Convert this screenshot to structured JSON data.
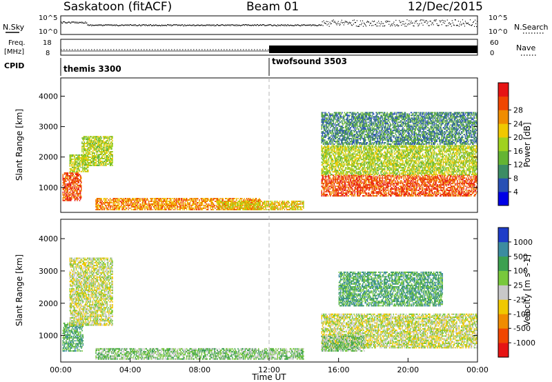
{
  "header": {
    "station": "Saskatoon (fitACF)",
    "beam": "Beam 01",
    "date": "12/Dec/2015"
  },
  "status_panels": {
    "nsky": {
      "left_label": "N.Sky",
      "right_label": "N.Search",
      "ticks_left": [
        "10^5",
        "10^0"
      ],
      "ticks_right": [
        "10^5",
        "10^0"
      ]
    },
    "freq": {
      "left_label_line1": "Freq.",
      "left_label_line2": "[MHz]",
      "right_label": "Nave",
      "ticks_left": [
        "18",
        "8"
      ],
      "ticks_right": [
        "60",
        "0"
      ]
    },
    "cpid": {
      "label": "CPID",
      "modes": [
        {
          "name": "themis 3300",
          "start_hour": 0
        },
        {
          "name": "twofsound 3503",
          "start_hour": 12
        }
      ]
    }
  },
  "chart_data": [
    {
      "type": "heatmap",
      "panel": "power",
      "ylabel": "Slant Range [km]",
      "ylim": [
        180,
        4600
      ],
      "yticks": [
        1000,
        2000,
        3000,
        4000
      ],
      "xlim_hours": [
        0,
        24
      ],
      "colorbar": {
        "label": "Power [dB]",
        "ticks": [
          "4",
          "8",
          "12",
          "16",
          "20",
          "24",
          "28"
        ],
        "colors": [
          "#0000e6",
          "#2850b4",
          "#3c8c64",
          "#64b432",
          "#a0d21e",
          "#f0c800",
          "#f08c00",
          "#f04600",
          "#e61414"
        ]
      },
      "regions": [
        {
          "t": [
            0.1,
            1.2
          ],
          "r": [
            550,
            1500
          ],
          "level": 7
        },
        {
          "t": [
            0.5,
            1.6
          ],
          "r": [
            1500,
            2100
          ],
          "level": 4
        },
        {
          "t": [
            1.2,
            3.0
          ],
          "r": [
            1700,
            2700
          ],
          "level": 4
        },
        {
          "t": [
            2.0,
            11.5
          ],
          "r": [
            250,
            650
          ],
          "level": 6
        },
        {
          "t": [
            9.0,
            14.0
          ],
          "r": [
            250,
            550
          ],
          "level": 5
        },
        {
          "t": [
            15.0,
            24.0
          ],
          "r": [
            700,
            1400
          ],
          "level": 7
        },
        {
          "t": [
            15.0,
            24.0
          ],
          "r": [
            1400,
            2400
          ],
          "level": 4
        },
        {
          "t": [
            15.0,
            24.0
          ],
          "r": [
            2400,
            3500
          ],
          "level": 2
        }
      ]
    },
    {
      "type": "heatmap",
      "panel": "velocity",
      "ylabel": "Slant Range [km]",
      "xlabel": "Time UT",
      "ylim": [
        180,
        4600
      ],
      "yticks": [
        1000,
        2000,
        3000,
        4000
      ],
      "xlim_hours": [
        0,
        24
      ],
      "xticks": [
        "00:00",
        "04:00",
        "08:00",
        "12:00",
        "16:00",
        "20:00",
        "00:00"
      ],
      "colorbar": {
        "label": "Velocity [m s^-1]",
        "ticks": [
          "1000",
          "500",
          "100",
          "25",
          "-25",
          "-100",
          "-500",
          "-1000"
        ],
        "colors": [
          "#1e3cc8",
          "#3c8ca0",
          "#3ca050",
          "#78c83c",
          "#c8c8c8",
          "#f0c800",
          "#f08c00",
          "#f04600",
          "#e61414"
        ]
      },
      "regions": [
        {
          "t": [
            0.1,
            1.3
          ],
          "r": [
            500,
            1400
          ],
          "level": 6
        },
        {
          "t": [
            0.5,
            3.0
          ],
          "r": [
            1300,
            3400
          ],
          "level": 4
        },
        {
          "t": [
            2.0,
            14.0
          ],
          "r": [
            250,
            600
          ],
          "level": 5
        },
        {
          "t": [
            15.0,
            24.0
          ],
          "r": [
            600,
            1700
          ],
          "level": 4
        },
        {
          "t": [
            16.0,
            22.0
          ],
          "r": [
            1900,
            3000
          ],
          "level": 6
        },
        {
          "t": [
            15.0,
            17.5
          ],
          "r": [
            500,
            1000
          ],
          "level": 5
        }
      ]
    }
  ],
  "colors": {
    "axis": "#000000",
    "dashed_divider": "#b4b4b4",
    "no_data": "#ffffff"
  }
}
